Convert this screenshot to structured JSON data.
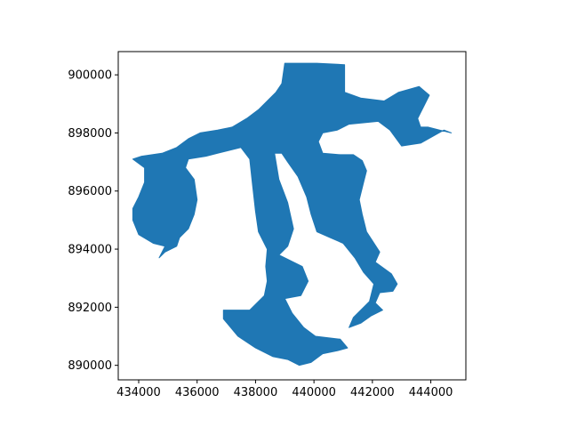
{
  "chart_data": {
    "type": "area",
    "title": "",
    "xlabel": "",
    "ylabel": "",
    "xlim": [
      433300,
      445200
    ],
    "ylim": [
      889500,
      900800
    ],
    "x_ticks": [
      434000,
      436000,
      438000,
      440000,
      442000,
      444000
    ],
    "x_tick_labels": [
      "434000",
      "436000",
      "438000",
      "440000",
      "442000",
      "444000"
    ],
    "y_ticks": [
      890000,
      892000,
      894000,
      896000,
      898000,
      900000
    ],
    "y_tick_labels": [
      "890000",
      "892000",
      "894000",
      "896000",
      "898000",
      "900000"
    ],
    "grid": false,
    "legend": "none",
    "fill_color": "#1f77b4",
    "series": [
      {
        "values": [
          [
            439000,
            900400
          ],
          [
            440100,
            900400
          ],
          [
            441050,
            900350
          ],
          [
            441050,
            899400
          ],
          [
            441600,
            899200
          ],
          [
            442400,
            899100
          ],
          [
            442900,
            899400
          ],
          [
            443600,
            899600
          ],
          [
            443950,
            899300
          ],
          [
            443750,
            898900
          ],
          [
            443550,
            898500
          ],
          [
            443650,
            898200
          ],
          [
            443900,
            898200
          ],
          [
            444300,
            898100
          ],
          [
            444700,
            898000
          ],
          [
            444450,
            898100
          ],
          [
            443650,
            897650
          ],
          [
            443000,
            897550
          ],
          [
            442600,
            898100
          ],
          [
            442200,
            898400
          ],
          [
            441200,
            898300
          ],
          [
            440800,
            898100
          ],
          [
            440300,
            898000
          ],
          [
            440150,
            897700
          ],
          [
            440300,
            897300
          ],
          [
            440900,
            897250
          ],
          [
            441350,
            897250
          ],
          [
            441650,
            897050
          ],
          [
            441800,
            896700
          ],
          [
            441700,
            896300
          ],
          [
            441550,
            895700
          ],
          [
            441650,
            895200
          ],
          [
            441800,
            894600
          ],
          [
            442250,
            893900
          ],
          [
            442100,
            893550
          ],
          [
            442650,
            893150
          ],
          [
            442850,
            892800
          ],
          [
            442700,
            892550
          ],
          [
            442250,
            892500
          ],
          [
            442100,
            892150
          ],
          [
            442350,
            891900
          ],
          [
            441950,
            891700
          ],
          [
            441600,
            891450
          ],
          [
            441200,
            891300
          ],
          [
            441350,
            891650
          ],
          [
            441900,
            892200
          ],
          [
            442050,
            892800
          ],
          [
            441700,
            893200
          ],
          [
            441400,
            893700
          ],
          [
            441000,
            894200
          ],
          [
            440550,
            894400
          ],
          [
            440100,
            894600
          ],
          [
            439900,
            895200
          ],
          [
            439750,
            895800
          ],
          [
            439450,
            896500
          ],
          [
            439100,
            897000
          ],
          [
            438900,
            897300
          ],
          [
            438650,
            897300
          ],
          [
            438800,
            896400
          ],
          [
            439100,
            895600
          ],
          [
            439300,
            894700
          ],
          [
            439100,
            894100
          ],
          [
            438800,
            893800
          ],
          [
            439600,
            893400
          ],
          [
            439800,
            892900
          ],
          [
            439550,
            892400
          ],
          [
            439000,
            892300
          ],
          [
            439250,
            891800
          ],
          [
            439650,
            891300
          ],
          [
            440050,
            891000
          ],
          [
            440900,
            890900
          ],
          [
            441150,
            890600
          ],
          [
            440800,
            890500
          ],
          [
            440300,
            890400
          ],
          [
            439900,
            890100
          ],
          [
            439500,
            890000
          ],
          [
            439100,
            890200
          ],
          [
            438600,
            890300
          ],
          [
            438000,
            890600
          ],
          [
            437400,
            891000
          ],
          [
            436900,
            891600
          ],
          [
            436900,
            891900
          ],
          [
            437800,
            891900
          ],
          [
            438300,
            892400
          ],
          [
            438400,
            892900
          ],
          [
            438350,
            893400
          ],
          [
            438400,
            894000
          ],
          [
            438100,
            894600
          ],
          [
            438000,
            895300
          ],
          [
            437900,
            896200
          ],
          [
            437800,
            897100
          ],
          [
            437500,
            897500
          ],
          [
            437100,
            897400
          ],
          [
            436700,
            897300
          ],
          [
            436300,
            897200
          ],
          [
            435700,
            897100
          ],
          [
            435600,
            896800
          ],
          [
            435900,
            896400
          ],
          [
            436000,
            895700
          ],
          [
            435900,
            895200
          ],
          [
            435700,
            894700
          ],
          [
            435400,
            894400
          ],
          [
            435300,
            894100
          ],
          [
            434900,
            893900
          ],
          [
            434700,
            893700
          ],
          [
            434900,
            894100
          ],
          [
            434500,
            894200
          ],
          [
            434000,
            894500
          ],
          [
            433800,
            895000
          ],
          [
            433800,
            895400
          ],
          [
            434000,
            895800
          ],
          [
            434200,
            896300
          ],
          [
            434200,
            896800
          ],
          [
            433800,
            897100
          ],
          [
            434100,
            897200
          ],
          [
            434800,
            897300
          ],
          [
            435300,
            897500
          ],
          [
            435700,
            897800
          ],
          [
            436100,
            898000
          ],
          [
            436700,
            898100
          ],
          [
            437200,
            898200
          ],
          [
            437700,
            898500
          ],
          [
            438100,
            898800
          ],
          [
            438400,
            899100
          ],
          [
            438700,
            899400
          ],
          [
            438900,
            899700
          ]
        ]
      }
    ]
  }
}
